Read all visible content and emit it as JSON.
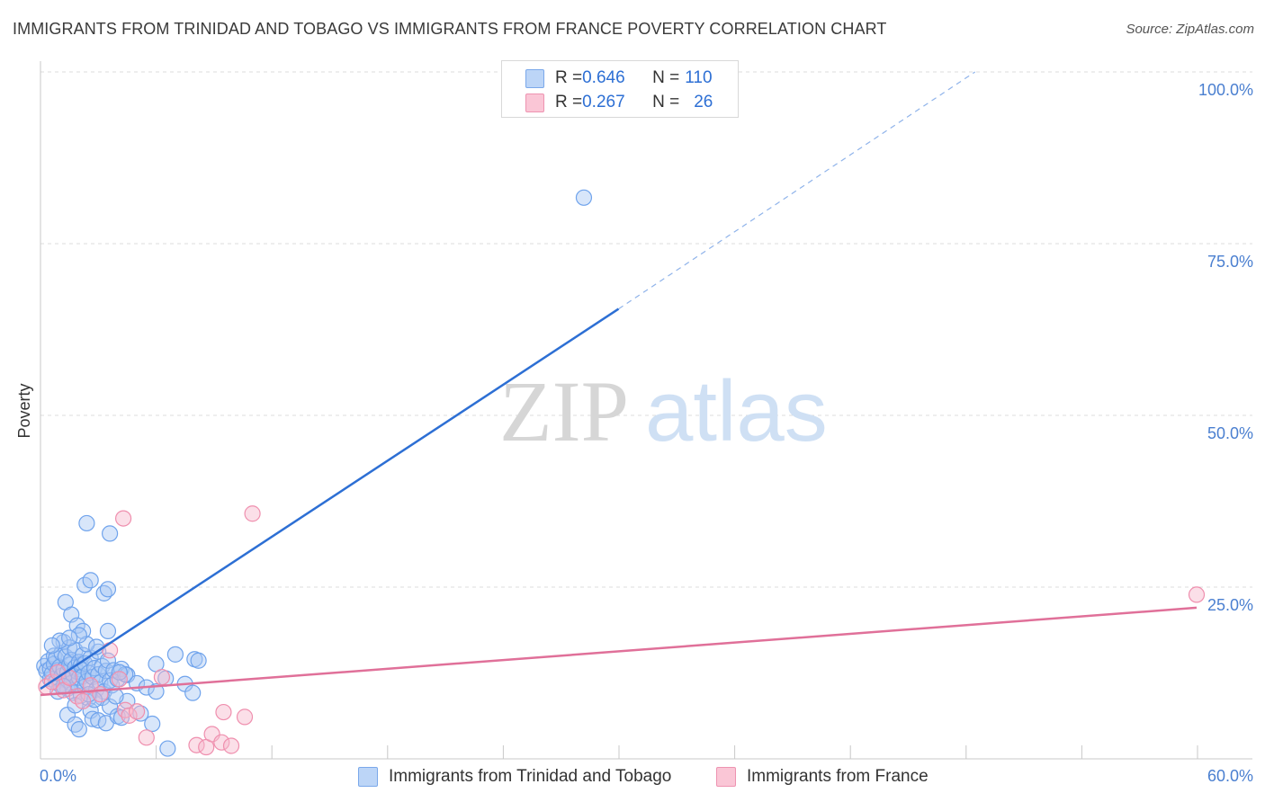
{
  "title": "IMMIGRANTS FROM TRINIDAD AND TOBAGO VS IMMIGRANTS FROM FRANCE POVERTY CORRELATION CHART",
  "source": "Source: ZipAtlas.com",
  "watermark": {
    "zip": "ZIP",
    "atlas": "atlas"
  },
  "legend": {
    "rows": [
      {
        "r_label": "R = ",
        "r_value": "0.646",
        "n_label": "N = ",
        "n_value": "110",
        "color": "#a9c8f5"
      },
      {
        "r_label": "R = ",
        "r_value": "0.267",
        "n_label": "N = ",
        "n_value": "26",
        "color": "#f7b7cb"
      }
    ]
  },
  "chart_data": {
    "type": "scatter",
    "title": "IMMIGRANTS FROM TRINIDAD AND TOBAGO VS IMMIGRANTS FROM FRANCE POVERTY CORRELATION CHART",
    "ylabel": "Poverty",
    "xlabel": "",
    "xlim": [
      0,
      60
    ],
    "ylim": [
      0,
      100
    ],
    "x_tick_labels": [
      "0.0%",
      "60.0%"
    ],
    "y_tick_labels": [
      "25.0%",
      "50.0%",
      "75.0%",
      "100.0%"
    ],
    "y_ticks": [
      25,
      50,
      75,
      100
    ],
    "series": [
      {
        "name": "Immigrants from Trinidad and Tobago",
        "color": "#6fa3ec",
        "fill": "#a9c8f5",
        "trend": {
          "x0": 0,
          "y0": 10.2,
          "x1": 30,
          "y1": 65.5,
          "dash_to_x": 48.5,
          "dash_to_y": 100
        },
        "points": [
          [
            0.2,
            13.5
          ],
          [
            0.3,
            12.8
          ],
          [
            0.4,
            14.2
          ],
          [
            0.5,
            11.6
          ],
          [
            0.5,
            13.1
          ],
          [
            0.6,
            12.4
          ],
          [
            0.7,
            15.0
          ],
          [
            0.7,
            13.8
          ],
          [
            0.8,
            11.2
          ],
          [
            0.8,
            14.6
          ],
          [
            0.9,
            12.9
          ],
          [
            1.0,
            13.4
          ],
          [
            1.0,
            10.8
          ],
          [
            1.1,
            15.4
          ],
          [
            1.1,
            12.1
          ],
          [
            1.2,
            17.0
          ],
          [
            1.2,
            13.0
          ],
          [
            1.3,
            11.5
          ],
          [
            1.3,
            14.9
          ],
          [
            1.4,
            12.6
          ],
          [
            1.4,
            10.2
          ],
          [
            1.5,
            16.2
          ],
          [
            1.5,
            13.7
          ],
          [
            1.6,
            11.0
          ],
          [
            1.6,
            14.4
          ],
          [
            1.7,
            12.2
          ],
          [
            1.7,
            9.6
          ],
          [
            1.8,
            15.8
          ],
          [
            1.8,
            13.3
          ],
          [
            1.9,
            10.9
          ],
          [
            1.9,
            12.7
          ],
          [
            2.0,
            14.1
          ],
          [
            2.0,
            11.8
          ],
          [
            2.1,
            13.6
          ],
          [
            2.1,
            9.2
          ],
          [
            2.2,
            12.0
          ],
          [
            2.2,
            15.1
          ],
          [
            2.3,
            10.5
          ],
          [
            2.3,
            13.9
          ],
          [
            2.4,
            11.3
          ],
          [
            2.5,
            12.5
          ],
          [
            2.5,
            8.8
          ],
          [
            2.6,
            14.7
          ],
          [
            2.7,
            11.9
          ],
          [
            2.8,
            13.2
          ],
          [
            2.9,
            10.1
          ],
          [
            3.0,
            12.3
          ],
          [
            3.0,
            15.6
          ],
          [
            3.1,
            11.1
          ],
          [
            3.2,
            13.5
          ],
          [
            3.3,
            9.8
          ],
          [
            3.4,
            12.8
          ],
          [
            3.5,
            14.3
          ],
          [
            3.6,
            11.4
          ],
          [
            3.7,
            10.7
          ],
          [
            3.8,
            12.9
          ],
          [
            4.0,
            11.6
          ],
          [
            4.2,
            13.1
          ],
          [
            4.5,
            12.2
          ],
          [
            5.0,
            11.0
          ],
          [
            5.5,
            10.4
          ],
          [
            6.0,
            13.8
          ],
          [
            6.5,
            11.7
          ],
          [
            7.0,
            15.2
          ],
          [
            7.5,
            10.9
          ],
          [
            8.0,
            14.5
          ],
          [
            1.3,
            22.8
          ],
          [
            1.6,
            21.0
          ],
          [
            1.9,
            19.4
          ],
          [
            2.2,
            18.6
          ],
          [
            2.4,
            16.7
          ],
          [
            2.0,
            18.0
          ],
          [
            1.0,
            17.2
          ],
          [
            1.5,
            17.6
          ],
          [
            2.3,
            25.3
          ],
          [
            2.6,
            26.0
          ],
          [
            3.3,
            24.1
          ],
          [
            3.5,
            24.7
          ],
          [
            3.5,
            18.6
          ],
          [
            2.4,
            34.3
          ],
          [
            3.6,
            32.8
          ],
          [
            1.4,
            6.4
          ],
          [
            1.8,
            5.0
          ],
          [
            2.0,
            4.3
          ],
          [
            2.6,
            7.0
          ],
          [
            2.7,
            5.8
          ],
          [
            3.0,
            5.6
          ],
          [
            3.2,
            8.9
          ],
          [
            3.4,
            5.2
          ],
          [
            3.6,
            7.6
          ],
          [
            4.0,
            6.2
          ],
          [
            4.2,
            6.0
          ],
          [
            4.5,
            8.4
          ],
          [
            5.2,
            6.6
          ],
          [
            2.8,
            8.6
          ],
          [
            3.9,
            9.1
          ],
          [
            0.9,
            9.8
          ],
          [
            1.2,
            10.6
          ],
          [
            1.8,
            7.8
          ],
          [
            2.5,
            9.4
          ],
          [
            4.4,
            12.3
          ],
          [
            6.0,
            9.8
          ],
          [
            5.8,
            5.1
          ],
          [
            6.6,
            1.5
          ],
          [
            7.9,
            9.6
          ],
          [
            8.2,
            14.3
          ],
          [
            28.2,
            81.7
          ],
          [
            0.6,
            16.5
          ],
          [
            2.9,
            16.3
          ],
          [
            4.1,
            12.6
          ]
        ]
      },
      {
        "name": "Immigrants from France",
        "color": "#ef8fae",
        "fill": "#f7b7cb",
        "trend": {
          "x0": 0,
          "y0": 9.3,
          "x1": 60,
          "y1": 22.0
        },
        "points": [
          [
            0.3,
            10.5
          ],
          [
            0.6,
            11.2
          ],
          [
            0.9,
            12.6
          ],
          [
            1.2,
            10.0
          ],
          [
            1.5,
            11.8
          ],
          [
            1.9,
            9.1
          ],
          [
            2.2,
            8.4
          ],
          [
            2.6,
            10.7
          ],
          [
            3.1,
            9.4
          ],
          [
            3.6,
            15.8
          ],
          [
            4.1,
            11.6
          ],
          [
            4.4,
            7.1
          ],
          [
            4.6,
            6.3
          ],
          [
            5.0,
            6.9
          ],
          [
            5.5,
            3.1
          ],
          [
            6.3,
            11.9
          ],
          [
            4.3,
            35.0
          ],
          [
            11.0,
            35.7
          ],
          [
            9.5,
            6.8
          ],
          [
            10.6,
            6.1
          ],
          [
            8.1,
            2.0
          ],
          [
            8.6,
            1.7
          ],
          [
            8.9,
            3.6
          ],
          [
            9.4,
            2.4
          ],
          [
            9.9,
            1.9
          ],
          [
            60.0,
            23.9
          ]
        ]
      }
    ]
  }
}
